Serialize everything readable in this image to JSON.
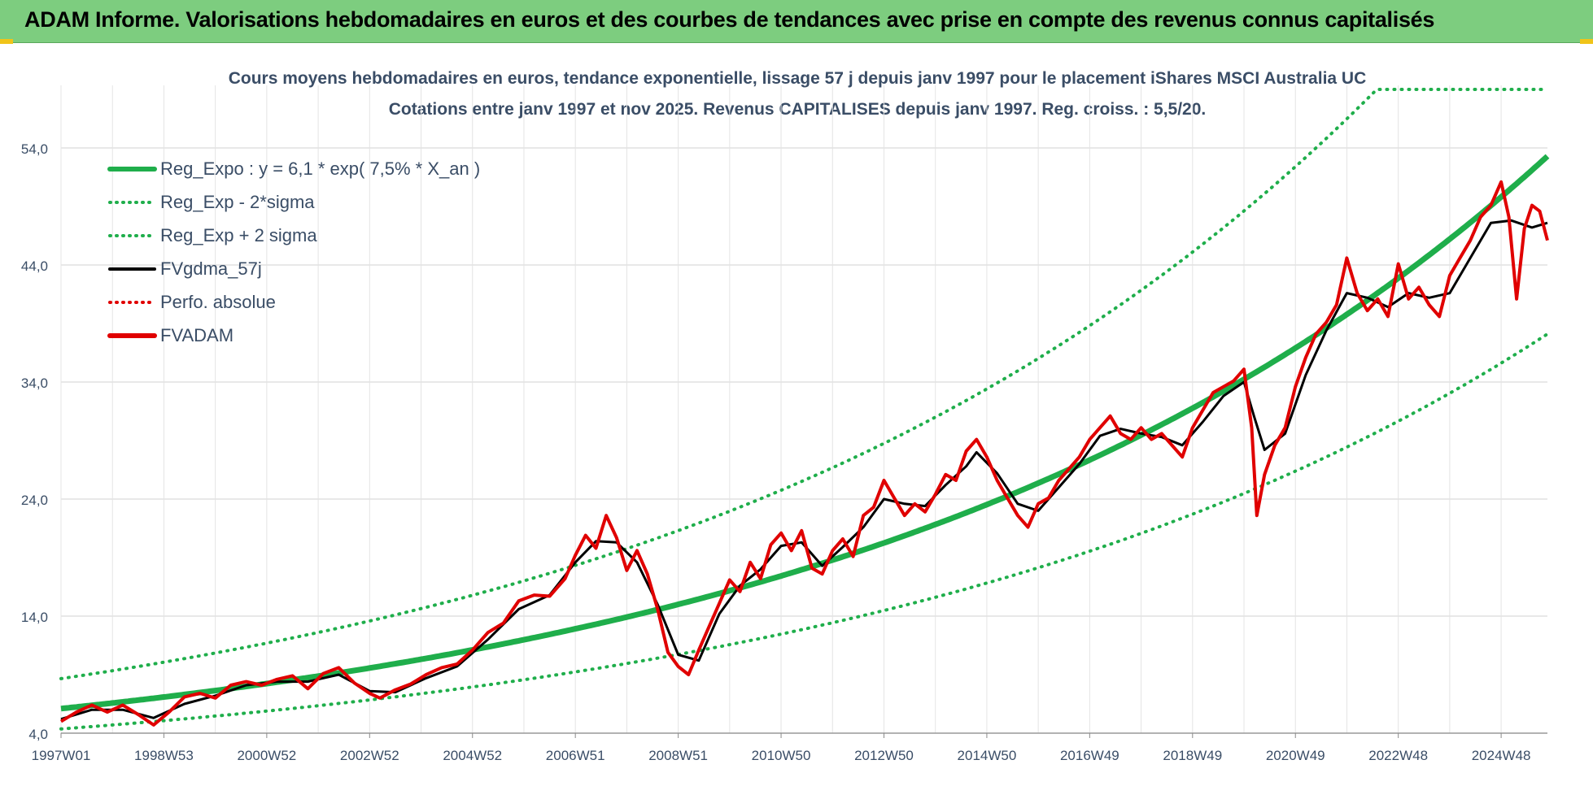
{
  "header": {
    "title": "ADAM Informe. Valorisations hebdomadaires en euros et des courbes de tendances avec prise en compte des revenus connus capitalisés",
    "banner_color": "#7dcd7f"
  },
  "chart_data": {
    "type": "line",
    "title_line1": "Cours moyens hebdomadaires en euros, tendance exponentielle, lissage 57 j depuis janv 1997 pour le placement iShares MSCI Australia UC",
    "title_line2": "Cotations entre janv 1997 et nov 2025. Revenus CAPITALISES depuis janv 1997. Reg. croiss. : 5,5/20.",
    "x_range": [
      1997.0,
      2025.9
    ],
    "ylim": [
      4.0,
      59.0
    ],
    "y_ticks": [
      "4,0",
      "14,0",
      "24,0",
      "34,0",
      "44,0",
      "54,0"
    ],
    "y_tick_values": [
      4,
      14,
      24,
      34,
      44,
      54
    ],
    "x_tick_labels": [
      "1997W01",
      "1998W53",
      "2000W52",
      "2002W52",
      "2004W52",
      "2006W51",
      "2008W51",
      "2010W50",
      "2012W50",
      "2014W50",
      "2016W49",
      "2018W49",
      "2020W49",
      "2022W48",
      "2024W48"
    ],
    "x_tick_years": [
      1997.0,
      1999.0,
      2001.0,
      2003.0,
      2005.0,
      2007.0,
      2009.0,
      2011.0,
      2013.0,
      2015.0,
      2017.0,
      2019.0,
      2021.0,
      2023.0,
      2025.0
    ],
    "grid": true,
    "legend_position": "top-left",
    "legend": [
      {
        "label": "Reg_Expo : y = 6,1 * exp( 7,5% *  X_an )",
        "color": "#1fae4b",
        "style": "solid-thick"
      },
      {
        "label": "Reg_Exp - 2*sigma",
        "color": "#1fae4b",
        "style": "dotted"
      },
      {
        "label": "Reg_Exp + 2 sigma",
        "color": "#1fae4b",
        "style": "dotted"
      },
      {
        "label": "FVgdma_57j",
        "color": "#000000",
        "style": "solid"
      },
      {
        "label": "Perfo. absolue",
        "color": "#e00000",
        "style": "dotted"
      },
      {
        "label": "FVADAM",
        "color": "#e00000",
        "style": "solid-thick"
      }
    ],
    "regression": {
      "a": 6.1,
      "rate": 0.075,
      "upper_factor": 1.42,
      "lower_factor": 0.715,
      "cap": 59.0
    },
    "series": [
      {
        "name": "FVADAM",
        "color": "#e00000",
        "points": [
          [
            1997.0,
            5.0
          ],
          [
            1997.3,
            5.8
          ],
          [
            1997.6,
            6.4
          ],
          [
            1997.9,
            5.8
          ],
          [
            1998.2,
            6.4
          ],
          [
            1998.5,
            5.6
          ],
          [
            1998.8,
            4.7
          ],
          [
            1999.1,
            5.8
          ],
          [
            1999.4,
            7.1
          ],
          [
            1999.7,
            7.4
          ],
          [
            2000.0,
            7.0
          ],
          [
            2000.3,
            8.1
          ],
          [
            2000.6,
            8.4
          ],
          [
            2000.9,
            8.1
          ],
          [
            2001.2,
            8.6
          ],
          [
            2001.5,
            8.9
          ],
          [
            2001.8,
            7.8
          ],
          [
            2002.1,
            9.1
          ],
          [
            2002.4,
            9.6
          ],
          [
            2002.7,
            8.3
          ],
          [
            2003.0,
            7.4
          ],
          [
            2003.2,
            7.0
          ],
          [
            2003.5,
            7.7
          ],
          [
            2003.8,
            8.2
          ],
          [
            2004.1,
            9.0
          ],
          [
            2004.4,
            9.6
          ],
          [
            2004.7,
            9.9
          ],
          [
            2005.0,
            11.1
          ],
          [
            2005.3,
            12.6
          ],
          [
            2005.6,
            13.4
          ],
          [
            2005.9,
            15.3
          ],
          [
            2006.2,
            15.8
          ],
          [
            2006.5,
            15.7
          ],
          [
            2006.8,
            17.2
          ],
          [
            2007.0,
            19.2
          ],
          [
            2007.2,
            20.9
          ],
          [
            2007.4,
            19.8
          ],
          [
            2007.6,
            22.6
          ],
          [
            2007.8,
            20.7
          ],
          [
            2008.0,
            17.9
          ],
          [
            2008.2,
            19.6
          ],
          [
            2008.4,
            17.6
          ],
          [
            2008.6,
            14.6
          ],
          [
            2008.8,
            10.9
          ],
          [
            2009.0,
            9.7
          ],
          [
            2009.2,
            9.0
          ],
          [
            2009.4,
            11.1
          ],
          [
            2009.6,
            13.1
          ],
          [
            2009.8,
            15.1
          ],
          [
            2010.0,
            17.1
          ],
          [
            2010.2,
            16.1
          ],
          [
            2010.4,
            18.6
          ],
          [
            2010.6,
            17.2
          ],
          [
            2010.8,
            20.1
          ],
          [
            2011.0,
            21.1
          ],
          [
            2011.2,
            19.6
          ],
          [
            2011.4,
            21.3
          ],
          [
            2011.6,
            18.1
          ],
          [
            2011.8,
            17.6
          ],
          [
            2012.0,
            19.6
          ],
          [
            2012.2,
            20.6
          ],
          [
            2012.4,
            19.1
          ],
          [
            2012.6,
            22.6
          ],
          [
            2012.8,
            23.3
          ],
          [
            2013.0,
            25.6
          ],
          [
            2013.2,
            24.1
          ],
          [
            2013.4,
            22.6
          ],
          [
            2013.6,
            23.6
          ],
          [
            2013.8,
            22.9
          ],
          [
            2014.0,
            24.4
          ],
          [
            2014.2,
            26.1
          ],
          [
            2014.4,
            25.6
          ],
          [
            2014.6,
            28.1
          ],
          [
            2014.8,
            29.1
          ],
          [
            2015.0,
            27.6
          ],
          [
            2015.2,
            25.6
          ],
          [
            2015.4,
            24.1
          ],
          [
            2015.6,
            22.6
          ],
          [
            2015.8,
            21.6
          ],
          [
            2016.0,
            23.6
          ],
          [
            2016.2,
            24.1
          ],
          [
            2016.4,
            25.6
          ],
          [
            2016.6,
            26.6
          ],
          [
            2016.8,
            27.6
          ],
          [
            2017.0,
            29.1
          ],
          [
            2017.2,
            30.1
          ],
          [
            2017.4,
            31.1
          ],
          [
            2017.6,
            29.6
          ],
          [
            2017.8,
            29.1
          ],
          [
            2018.0,
            30.1
          ],
          [
            2018.2,
            29.1
          ],
          [
            2018.4,
            29.6
          ],
          [
            2018.6,
            28.6
          ],
          [
            2018.8,
            27.6
          ],
          [
            2019.0,
            30.1
          ],
          [
            2019.2,
            31.6
          ],
          [
            2019.4,
            33.1
          ],
          [
            2019.6,
            33.6
          ],
          [
            2019.8,
            34.1
          ],
          [
            2020.0,
            35.1
          ],
          [
            2020.15,
            30.1
          ],
          [
            2020.25,
            22.6
          ],
          [
            2020.4,
            26.1
          ],
          [
            2020.6,
            28.6
          ],
          [
            2020.8,
            30.1
          ],
          [
            2021.0,
            33.6
          ],
          [
            2021.2,
            36.1
          ],
          [
            2021.4,
            38.1
          ],
          [
            2021.6,
            39.1
          ],
          [
            2021.8,
            40.6
          ],
          [
            2022.0,
            44.6
          ],
          [
            2022.2,
            41.6
          ],
          [
            2022.4,
            40.1
          ],
          [
            2022.6,
            41.1
          ],
          [
            2022.8,
            39.6
          ],
          [
            2023.0,
            44.1
          ],
          [
            2023.2,
            41.1
          ],
          [
            2023.4,
            42.1
          ],
          [
            2023.6,
            40.6
          ],
          [
            2023.8,
            39.6
          ],
          [
            2024.0,
            43.1
          ],
          [
            2024.2,
            44.6
          ],
          [
            2024.4,
            46.1
          ],
          [
            2024.6,
            48.1
          ],
          [
            2024.8,
            49.1
          ],
          [
            2025.0,
            51.1
          ],
          [
            2025.15,
            48.1
          ],
          [
            2025.3,
            41.1
          ],
          [
            2025.45,
            47.1
          ],
          [
            2025.6,
            49.1
          ],
          [
            2025.75,
            48.6
          ],
          [
            2025.9,
            46.1
          ]
        ]
      },
      {
        "name": "FVgdma_57j",
        "color": "#000000",
        "points": [
          [
            1997.0,
            5.2
          ],
          [
            1997.6,
            6.0
          ],
          [
            1998.2,
            6.0
          ],
          [
            1998.8,
            5.3
          ],
          [
            1999.4,
            6.5
          ],
          [
            2000.0,
            7.2
          ],
          [
            2000.6,
            8.1
          ],
          [
            2001.2,
            8.4
          ],
          [
            2001.8,
            8.4
          ],
          [
            2002.4,
            9.0
          ],
          [
            2003.0,
            7.6
          ],
          [
            2003.5,
            7.5
          ],
          [
            2004.1,
            8.7
          ],
          [
            2004.7,
            9.7
          ],
          [
            2005.3,
            12.0
          ],
          [
            2005.9,
            14.6
          ],
          [
            2006.5,
            15.8
          ],
          [
            2007.0,
            18.6
          ],
          [
            2007.4,
            20.4
          ],
          [
            2007.8,
            20.3
          ],
          [
            2008.2,
            18.6
          ],
          [
            2008.6,
            15.0
          ],
          [
            2009.0,
            10.7
          ],
          [
            2009.4,
            10.2
          ],
          [
            2009.8,
            14.2
          ],
          [
            2010.2,
            16.6
          ],
          [
            2010.6,
            18.0
          ],
          [
            2011.0,
            20.0
          ],
          [
            2011.4,
            20.3
          ],
          [
            2011.8,
            18.3
          ],
          [
            2012.2,
            19.9
          ],
          [
            2012.6,
            21.6
          ],
          [
            2013.0,
            24.0
          ],
          [
            2013.4,
            23.6
          ],
          [
            2013.8,
            23.4
          ],
          [
            2014.2,
            25.2
          ],
          [
            2014.6,
            26.8
          ],
          [
            2014.8,
            28.0
          ],
          [
            2015.2,
            26.2
          ],
          [
            2015.6,
            23.6
          ],
          [
            2016.0,
            23.0
          ],
          [
            2016.4,
            25.0
          ],
          [
            2016.8,
            27.0
          ],
          [
            2017.2,
            29.4
          ],
          [
            2017.6,
            30.0
          ],
          [
            2018.0,
            29.6
          ],
          [
            2018.4,
            29.3
          ],
          [
            2018.8,
            28.6
          ],
          [
            2019.2,
            30.6
          ],
          [
            2019.6,
            32.8
          ],
          [
            2020.0,
            34.0
          ],
          [
            2020.2,
            31.0
          ],
          [
            2020.4,
            28.2
          ],
          [
            2020.8,
            29.6
          ],
          [
            2021.2,
            34.6
          ],
          [
            2021.6,
            38.4
          ],
          [
            2022.0,
            41.6
          ],
          [
            2022.4,
            41.2
          ],
          [
            2022.8,
            40.4
          ],
          [
            2023.2,
            41.6
          ],
          [
            2023.6,
            41.2
          ],
          [
            2024.0,
            41.6
          ],
          [
            2024.4,
            44.6
          ],
          [
            2024.8,
            47.6
          ],
          [
            2025.2,
            47.8
          ],
          [
            2025.6,
            47.2
          ],
          [
            2025.9,
            47.6
          ]
        ]
      }
    ]
  }
}
